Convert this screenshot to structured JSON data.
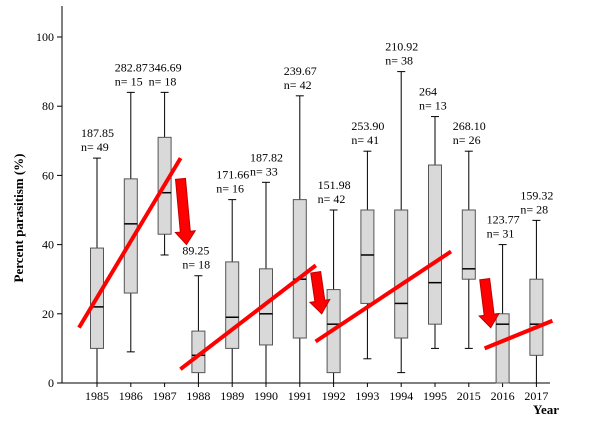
{
  "chart_data": {
    "type": "box",
    "ylabel": "Percent parasitism (%)",
    "xlabel": "Year",
    "ylim": [
      0,
      100
    ],
    "yticks": [
      0,
      20,
      40,
      60,
      80,
      100
    ],
    "categories": [
      "1985",
      "1986",
      "1987",
      "1988",
      "1989",
      "1990",
      "1991",
      "1992",
      "1993",
      "1994",
      "1995",
      "2015",
      "2016",
      "2017"
    ],
    "boxes": [
      {
        "year": "1985",
        "min": 0,
        "q1": 10,
        "median": 22,
        "q3": 39,
        "max": 65,
        "annotation_value": "187.85",
        "annotation_n": "n= 49"
      },
      {
        "year": "1986",
        "min": 9,
        "q1": 26,
        "median": 46,
        "q3": 59,
        "max": 84,
        "annotation_value": "282.87",
        "annotation_n": "n= 15"
      },
      {
        "year": "1987",
        "min": 37,
        "q1": 43,
        "median": 55,
        "q3": 71,
        "max": 84,
        "annotation_value": "346.69",
        "annotation_n": "n= 18"
      },
      {
        "year": "1988",
        "min": 0,
        "q1": 3,
        "median": 8,
        "q3": 15,
        "max": 31,
        "annotation_value": "89.25",
        "annotation_n": "n= 18"
      },
      {
        "year": "1989",
        "min": 0,
        "q1": 10,
        "median": 19,
        "q3": 35,
        "max": 53,
        "annotation_value": "171.66",
        "annotation_n": "n= 16"
      },
      {
        "year": "1990",
        "min": 0,
        "q1": 11,
        "median": 20,
        "q3": 33,
        "max": 58,
        "annotation_value": "187.82",
        "annotation_n": "n= 33"
      },
      {
        "year": "1991",
        "min": 0,
        "q1": 13,
        "median": 30,
        "q3": 53,
        "max": 83,
        "annotation_value": "239.67",
        "annotation_n": "n= 42"
      },
      {
        "year": "1992",
        "min": 0,
        "q1": 3,
        "median": 17,
        "q3": 27,
        "max": 50,
        "annotation_value": "151.98",
        "annotation_n": "n= 42"
      },
      {
        "year": "1993",
        "min": 7,
        "q1": 23,
        "median": 37,
        "q3": 50,
        "max": 67,
        "annotation_value": "253.90",
        "annotation_n": "n= 41"
      },
      {
        "year": "1994",
        "min": 3,
        "q1": 13,
        "median": 23,
        "q3": 50,
        "max": 90,
        "annotation_value": "210.92",
        "annotation_n": "n= 38"
      },
      {
        "year": "1995",
        "min": 10,
        "q1": 17,
        "median": 29,
        "q3": 63,
        "max": 77,
        "annotation_value": "264",
        "annotation_n": "n= 13"
      },
      {
        "year": "2015",
        "min": 10,
        "q1": 30,
        "median": 33,
        "q3": 50,
        "max": 67,
        "annotation_value": "268.10",
        "annotation_n": "n= 26"
      },
      {
        "year": "2016",
        "min": 0,
        "q1": 0,
        "median": 17,
        "q3": 20,
        "max": 40,
        "annotation_value": "123.77",
        "annotation_n": "n= 31"
      },
      {
        "year": "2017",
        "min": 0,
        "q1": 8,
        "median": 17,
        "q3": 30,
        "max": 47,
        "annotation_value": "159.32",
        "annotation_n": "n= 28"
      }
    ],
    "trend_lines": [
      {
        "from": {
          "x": "1985",
          "y": 16
        },
        "to": {
          "x": "1987",
          "y": 65
        }
      },
      {
        "from": {
          "x": "1988",
          "y": 4
        },
        "to": {
          "x": "1991",
          "y": 34
        }
      },
      {
        "from": {
          "x": "1992",
          "y": 12
        },
        "to": {
          "x": "1995",
          "y": 38
        }
      },
      {
        "from": {
          "x": "2016",
          "y": 10
        },
        "to": {
          "x": "2017",
          "y": 18
        }
      }
    ],
    "arrows": [
      {
        "between": [
          "1987",
          "1988"
        ],
        "from_y": 59,
        "to_y": 40
      },
      {
        "between": [
          "1991",
          "1992"
        ],
        "from_y": 32,
        "to_y": 20
      },
      {
        "between": [
          "2015",
          "2016"
        ],
        "from_y": 30,
        "to_y": 16
      }
    ],
    "colors": {
      "box_fill": "#d9d9d9",
      "box_stroke": "#555555",
      "trend_line": "#ff0000",
      "arrow_fill": "#ff0000",
      "arrow_stroke": "#c00000"
    }
  }
}
